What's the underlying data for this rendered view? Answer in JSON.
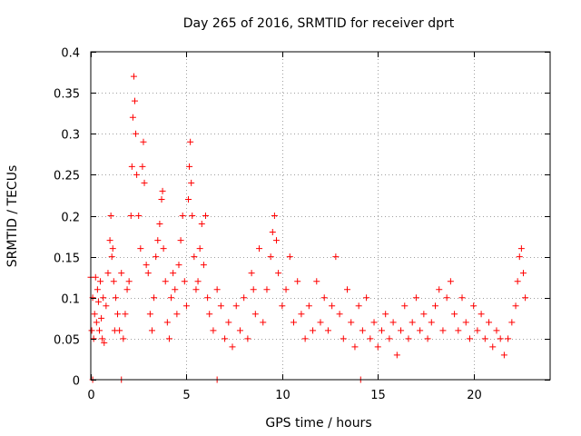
{
  "chart_data": {
    "type": "scatter",
    "title": "Day 265 of 2016, SRMTID for receiver dprt",
    "xlabel": "GPS time / hours",
    "ylabel": "SRMTID / TECUs",
    "xlim": [
      0,
      24
    ],
    "ylim": [
      0,
      0.4
    ],
    "xticks": [
      0,
      5,
      10,
      15,
      20
    ],
    "xtick_labels": [
      "0",
      "5",
      "10",
      "15",
      "20"
    ],
    "yticks": [
      0,
      0.05,
      0.1,
      0.15,
      0.2,
      0.25,
      0.3,
      0.35,
      0.4
    ],
    "ytick_labels": [
      "0",
      "0.05",
      "0.1",
      "0.15",
      "0.2",
      "0.25",
      "0.3",
      "0.35",
      "0.4"
    ],
    "grid": true,
    "marker": "+",
    "colors": {
      "series": "#ff0000",
      "grid": "#a0a0a0",
      "frame": "#000000"
    },
    "series": [
      {
        "name": "SRMTID",
        "points": [
          [
            0.0,
            0.125
          ],
          [
            0.05,
            0.06
          ],
          [
            0.1,
            0.1
          ],
          [
            0.15,
            0.05
          ],
          [
            0.2,
            0.08
          ],
          [
            0.25,
            0.125
          ],
          [
            0.3,
            0.07
          ],
          [
            0.35,
            0.11
          ],
          [
            0.4,
            0.095
          ],
          [
            0.45,
            0.06
          ],
          [
            0.5,
            0.12
          ],
          [
            0.55,
            0.075
          ],
          [
            0.6,
            0.05
          ],
          [
            0.65,
            0.1
          ],
          [
            0.7,
            0.045
          ],
          [
            0.8,
            0.09
          ],
          [
            0.9,
            0.13
          ],
          [
            1.0,
            0.17
          ],
          [
            1.05,
            0.2
          ],
          [
            1.1,
            0.15
          ],
          [
            1.15,
            0.16
          ],
          [
            1.2,
            0.12
          ],
          [
            1.25,
            0.06
          ],
          [
            1.3,
            0.1
          ],
          [
            1.4,
            0.08
          ],
          [
            1.5,
            0.06
          ],
          [
            1.6,
            0.13
          ],
          [
            1.7,
            0.05
          ],
          [
            1.8,
            0.08
          ],
          [
            1.9,
            0.11
          ],
          [
            2.0,
            0.12
          ],
          [
            2.1,
            0.2
          ],
          [
            2.15,
            0.26
          ],
          [
            2.2,
            0.32
          ],
          [
            2.25,
            0.37
          ],
          [
            2.3,
            0.34
          ],
          [
            2.35,
            0.3
          ],
          [
            2.4,
            0.25
          ],
          [
            2.5,
            0.2
          ],
          [
            2.6,
            0.16
          ],
          [
            2.7,
            0.26
          ],
          [
            2.75,
            0.29
          ],
          [
            2.8,
            0.24
          ],
          [
            2.9,
            0.14
          ],
          [
            3.0,
            0.13
          ],
          [
            3.1,
            0.08
          ],
          [
            3.2,
            0.06
          ],
          [
            3.3,
            0.1
          ],
          [
            3.4,
            0.15
          ],
          [
            3.5,
            0.17
          ],
          [
            3.6,
            0.19
          ],
          [
            3.7,
            0.22
          ],
          [
            3.75,
            0.23
          ],
          [
            3.8,
            0.16
          ],
          [
            3.9,
            0.12
          ],
          [
            4.0,
            0.07
          ],
          [
            4.1,
            0.05
          ],
          [
            4.2,
            0.1
          ],
          [
            4.3,
            0.13
          ],
          [
            4.4,
            0.11
          ],
          [
            4.5,
            0.08
          ],
          [
            4.6,
            0.14
          ],
          [
            4.7,
            0.17
          ],
          [
            4.8,
            0.2
          ],
          [
            4.9,
            0.12
          ],
          [
            5.0,
            0.09
          ],
          [
            5.1,
            0.22
          ],
          [
            5.15,
            0.26
          ],
          [
            5.2,
            0.29
          ],
          [
            5.25,
            0.24
          ],
          [
            5.3,
            0.2
          ],
          [
            5.4,
            0.15
          ],
          [
            5.5,
            0.11
          ],
          [
            5.6,
            0.12
          ],
          [
            5.7,
            0.16
          ],
          [
            5.8,
            0.19
          ],
          [
            5.9,
            0.14
          ],
          [
            6.0,
            0.2
          ],
          [
            6.1,
            0.1
          ],
          [
            6.2,
            0.08
          ],
          [
            6.4,
            0.06
          ],
          [
            6.6,
            0.11
          ],
          [
            6.8,
            0.09
          ],
          [
            7.0,
            0.05
          ],
          [
            7.2,
            0.07
          ],
          [
            7.4,
            0.04
          ],
          [
            7.6,
            0.09
          ],
          [
            7.8,
            0.06
          ],
          [
            8.0,
            0.1
          ],
          [
            8.2,
            0.05
          ],
          [
            8.4,
            0.13
          ],
          [
            8.5,
            0.11
          ],
          [
            8.6,
            0.08
          ],
          [
            8.8,
            0.16
          ],
          [
            9.0,
            0.07
          ],
          [
            9.2,
            0.11
          ],
          [
            9.4,
            0.15
          ],
          [
            9.5,
            0.18
          ],
          [
            9.6,
            0.2
          ],
          [
            9.7,
            0.17
          ],
          [
            9.8,
            0.13
          ],
          [
            10.0,
            0.09
          ],
          [
            10.2,
            0.11
          ],
          [
            10.4,
            0.15
          ],
          [
            10.6,
            0.07
          ],
          [
            10.8,
            0.12
          ],
          [
            11.0,
            0.08
          ],
          [
            11.2,
            0.05
          ],
          [
            11.4,
            0.09
          ],
          [
            11.6,
            0.06
          ],
          [
            11.8,
            0.12
          ],
          [
            12.0,
            0.07
          ],
          [
            12.2,
            0.1
          ],
          [
            12.4,
            0.06
          ],
          [
            12.6,
            0.09
          ],
          [
            12.8,
            0.15
          ],
          [
            13.0,
            0.08
          ],
          [
            13.2,
            0.05
          ],
          [
            13.4,
            0.11
          ],
          [
            13.6,
            0.07
          ],
          [
            13.8,
            0.04
          ],
          [
            14.0,
            0.09
          ],
          [
            14.2,
            0.06
          ],
          [
            14.4,
            0.1
          ],
          [
            14.6,
            0.05
          ],
          [
            14.8,
            0.07
          ],
          [
            15.0,
            0.04
          ],
          [
            15.2,
            0.06
          ],
          [
            15.4,
            0.08
          ],
          [
            15.6,
            0.05
          ],
          [
            15.8,
            0.07
          ],
          [
            16.0,
            0.03
          ],
          [
            16.2,
            0.06
          ],
          [
            16.4,
            0.09
          ],
          [
            16.6,
            0.05
          ],
          [
            16.8,
            0.07
          ],
          [
            17.0,
            0.1
          ],
          [
            17.2,
            0.06
          ],
          [
            17.4,
            0.08
          ],
          [
            17.6,
            0.05
          ],
          [
            17.8,
            0.07
          ],
          [
            18.0,
            0.09
          ],
          [
            18.2,
            0.11
          ],
          [
            18.4,
            0.06
          ],
          [
            18.6,
            0.1
          ],
          [
            18.8,
            0.12
          ],
          [
            19.0,
            0.08
          ],
          [
            19.2,
            0.06
          ],
          [
            19.4,
            0.1
          ],
          [
            19.6,
            0.07
          ],
          [
            19.8,
            0.05
          ],
          [
            20.0,
            0.09
          ],
          [
            20.2,
            0.06
          ],
          [
            20.4,
            0.08
          ],
          [
            20.6,
            0.05
          ],
          [
            20.8,
            0.07
          ],
          [
            21.0,
            0.04
          ],
          [
            21.2,
            0.06
          ],
          [
            21.4,
            0.05
          ],
          [
            21.6,
            0.03
          ],
          [
            21.8,
            0.05
          ],
          [
            22.0,
            0.07
          ],
          [
            22.2,
            0.09
          ],
          [
            22.3,
            0.12
          ],
          [
            22.4,
            0.15
          ],
          [
            22.5,
            0.16
          ],
          [
            22.6,
            0.13
          ],
          [
            22.7,
            0.1
          ],
          [
            0.1,
            0.0
          ],
          [
            1.6,
            0.0
          ],
          [
            6.6,
            0.0
          ],
          [
            14.1,
            0.0
          ]
        ]
      }
    ]
  }
}
